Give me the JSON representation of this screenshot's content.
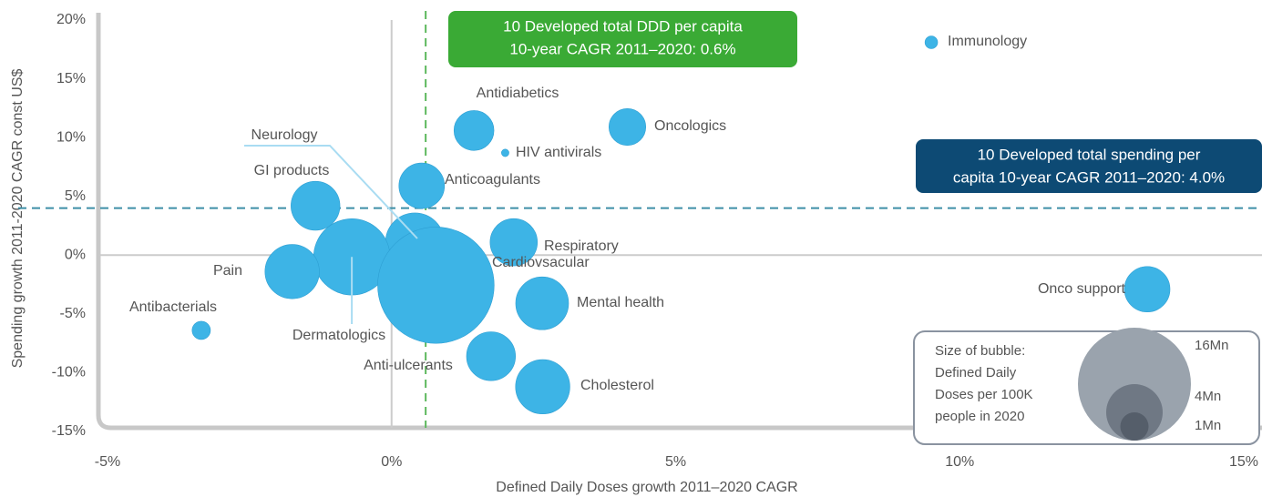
{
  "chart_data": {
    "type": "bubble",
    "x_label": "Defined Daily Doses growth 2011–2020 CAGR",
    "y_label": "Spending growth 2011-2020 CAGR const US$",
    "color": "#3db4e6",
    "labels": [
      "Immunology",
      "Antidiabetics",
      "Oncologics",
      "HIV antivirals",
      "Anticoagulants",
      "GI products",
      "Respiratory",
      "Neurology",
      "Dermatologics",
      "Pain",
      "Cardiovsacular",
      "Mental health",
      "Antibacterials",
      "Anti-ulcerants",
      "Cholesterol",
      "Onco support"
    ],
    "x": [
      9.5,
      1.45,
      4.15,
      2.0,
      0.53,
      -1.34,
      2.15,
      0.41,
      -0.7,
      -1.75,
      0.78,
      2.65,
      -3.35,
      1.75,
      2.66,
      13.3
    ],
    "y": [
      18.1,
      10.6,
      10.9,
      8.7,
      5.9,
      4.2,
      1.1,
      1.1,
      -0.15,
      -1.4,
      -2.56,
      -4.1,
      -6.4,
      -8.6,
      -11.2,
      -2.9
    ],
    "sizes": [
      0.2,
      2.0,
      1.7,
      0.07,
      2.6,
      3.0,
      2.8,
      4.3,
      7.3,
      3.7,
      17,
      3.5,
      0.42,
      3.0,
      3.7,
      2.6
    ],
    "xlim": [
      -5,
      15
    ],
    "xticks": [
      {
        "value": -5,
        "label": "-5%"
      },
      {
        "value": 0,
        "label": "0%"
      },
      {
        "value": 5,
        "label": "5%"
      },
      {
        "value": 10,
        "label": "10%"
      },
      {
        "value": 15,
        "label": "15%"
      }
    ],
    "ylim": [
      -15,
      20
    ],
    "yticks": [
      {
        "value": -15,
        "label": "-15%"
      },
      {
        "value": -10,
        "label": "-10%"
      },
      {
        "value": -5,
        "label": "-5%"
      },
      {
        "value": 0,
        "label": "0%"
      },
      {
        "value": 5,
        "label": "5%"
      },
      {
        "value": 10,
        "label": "10%"
      },
      {
        "value": 15,
        "label": "15%"
      },
      {
        "value": 20,
        "label": "20%"
      }
    ],
    "reference_lines": {
      "x": 0.6,
      "y": 4.0
    },
    "annotations": [
      {
        "lines": [
          "10 Developed total DDD per capita",
          "10-year CAGR 2011–2020: 0.6%"
        ],
        "color": "#3aaa35"
      },
      {
        "lines": [
          "10 Developed total spending per",
          "capita 10-year CAGR 2011–2020: 4.0%"
        ],
        "color": "#0d4a74"
      }
    ],
    "size_legend": {
      "title": [
        "Size of bubble:",
        "Defined Daily",
        "Doses per 100K",
        "people in 2020"
      ],
      "sizes": [
        {
          "value": 16,
          "label": "16Mn"
        },
        {
          "value": 4,
          "label": "4Mn"
        },
        {
          "value": 1,
          "label": "1Mn"
        }
      ]
    }
  }
}
